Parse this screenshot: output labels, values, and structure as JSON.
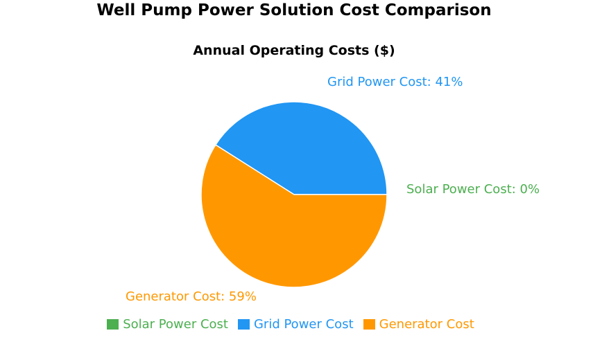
{
  "chart_data": {
    "type": "pie",
    "title": "Well Pump Power Solution Cost Comparison",
    "subtitle": "Annual Operating Costs ($)",
    "categories": [
      "Solar Power Cost",
      "Grid Power Cost",
      "Generator Cost"
    ],
    "values": [
      0,
      41,
      59
    ],
    "unit": "%",
    "colors": [
      "#4CAF50",
      "#2196F3",
      "#FF9800"
    ],
    "data_labels": [
      "Solar Power Cost: 0%",
      "Grid Power Cost: 41%",
      "Generator Cost: 59%"
    ],
    "legend_position": "bottom"
  }
}
